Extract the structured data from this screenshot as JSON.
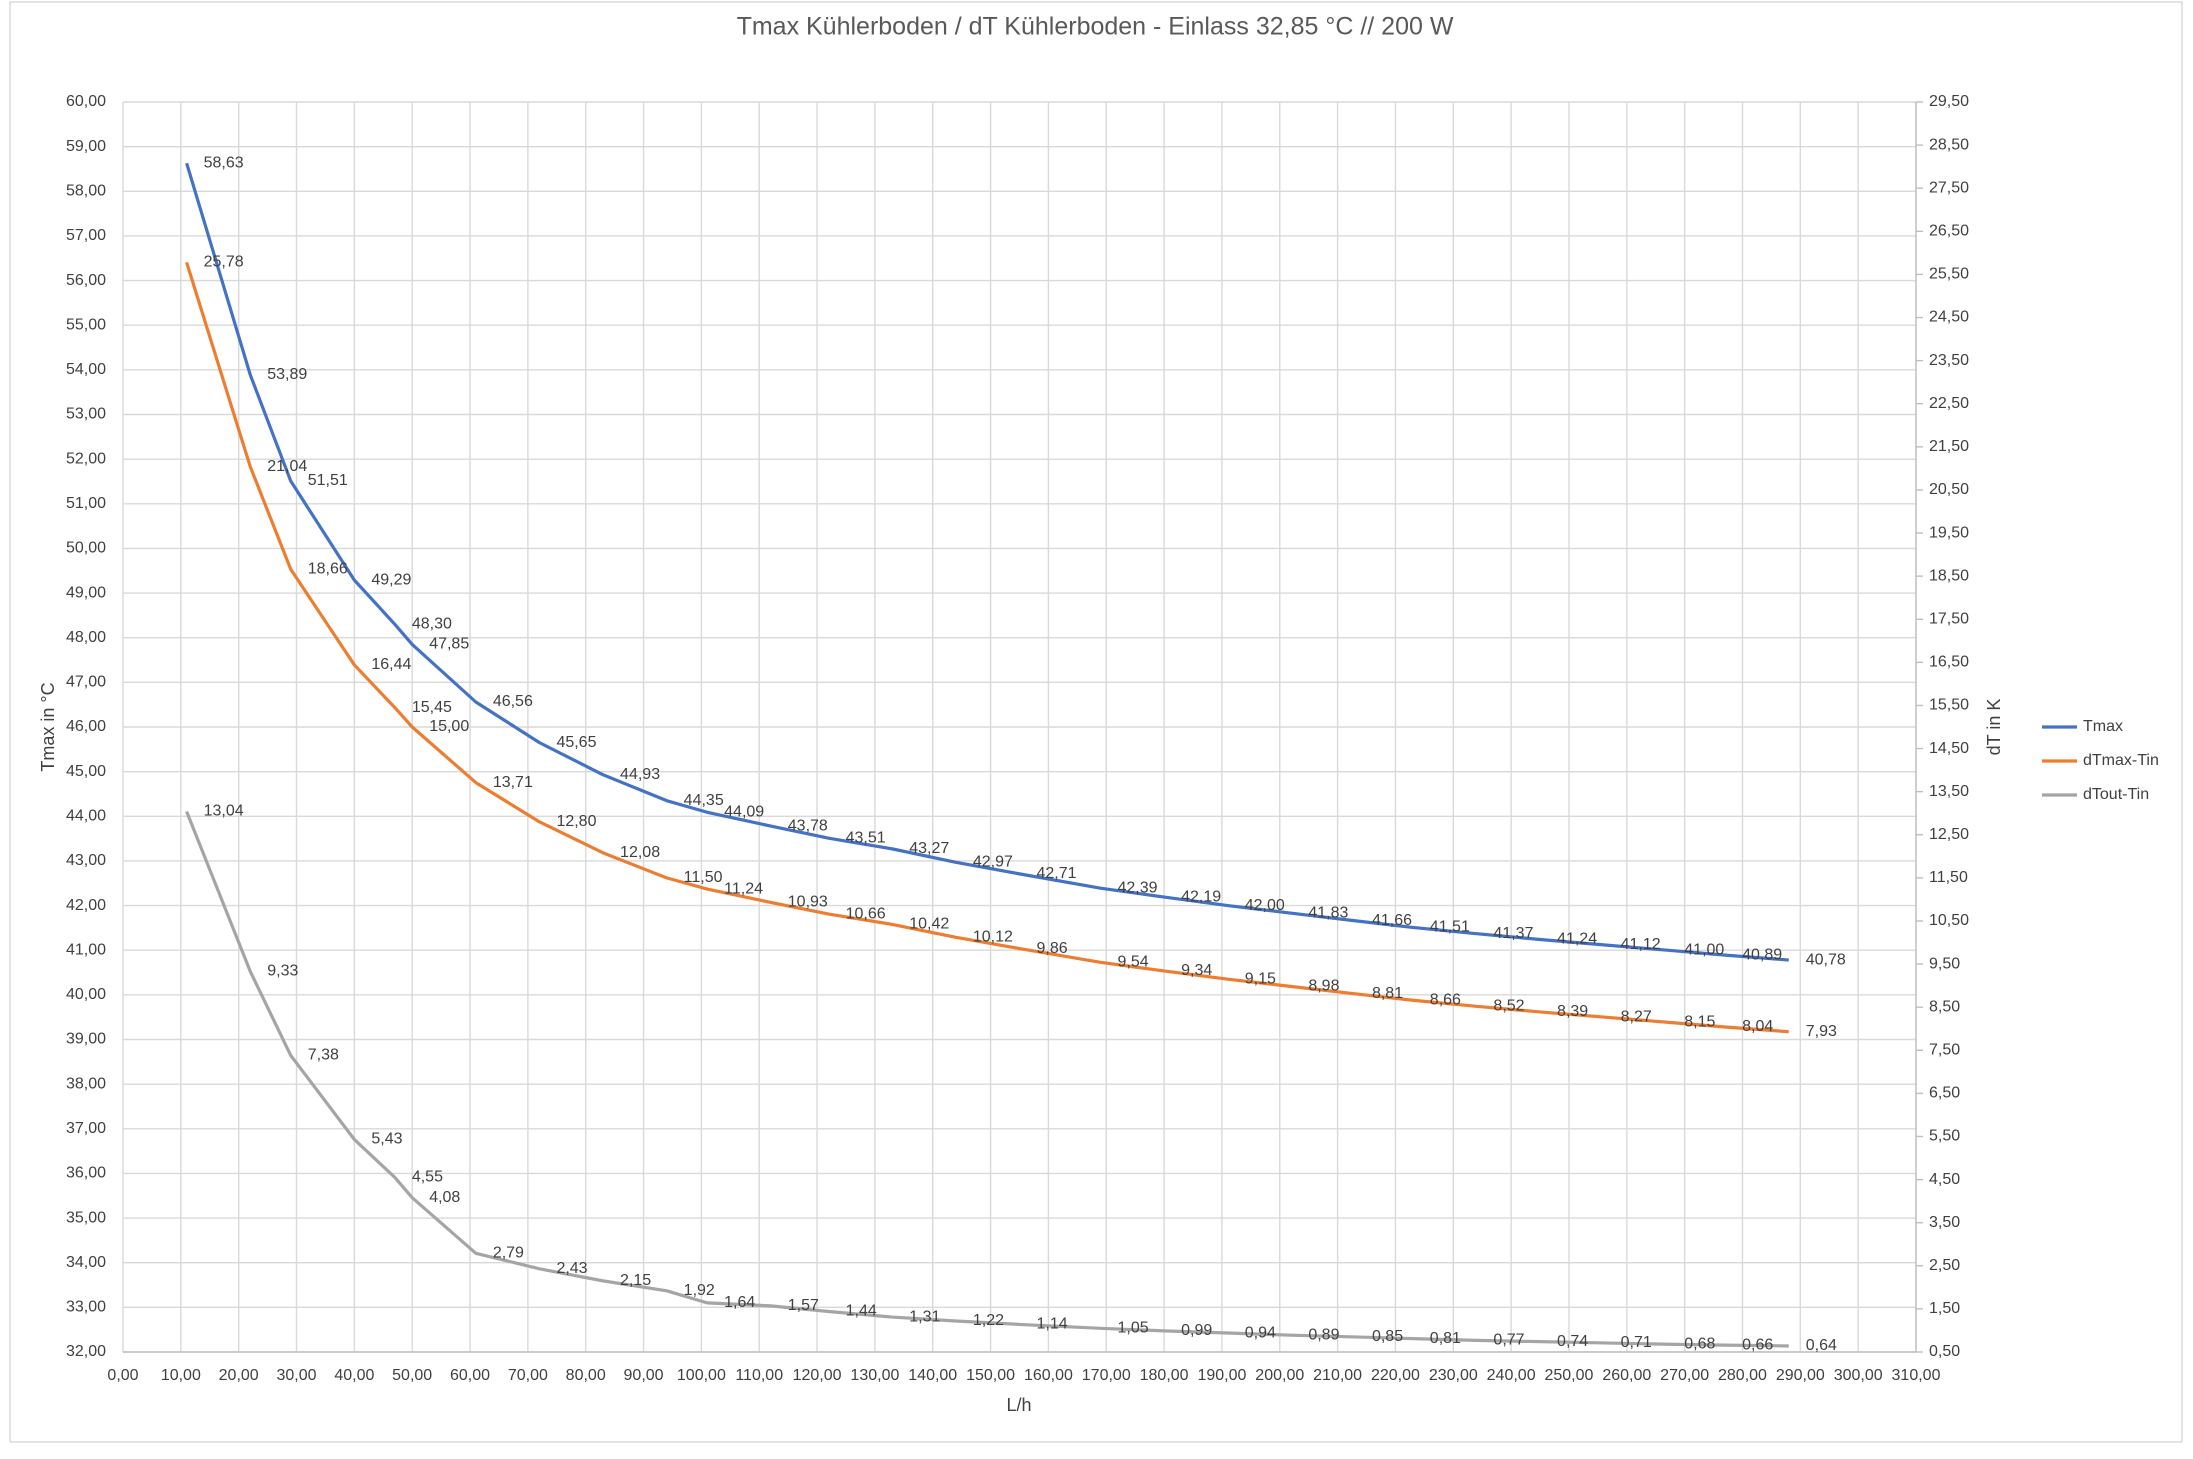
{
  "chart_data": {
    "type": "line",
    "title": "Tmax Kühlerboden / dT Kühlerboden - Einlass 32,85 °C // 200 W",
    "x_label": "L/h",
    "y_label": "Tmax in °C",
    "y2_label": "dT in K",
    "x": [
      11,
      22,
      29,
      40,
      47,
      50,
      61,
      72,
      83,
      94,
      101,
      112,
      122,
      133,
      144,
      155,
      169,
      180,
      191,
      202,
      213,
      223,
      234,
      245,
      256,
      267,
      277,
      288
    ],
    "series": [
      {
        "name": "Tmax",
        "color": "#4472c4",
        "values": [
          58.63,
          53.89,
          51.51,
          49.29,
          48.3,
          47.85,
          46.56,
          45.65,
          44.93,
          44.35,
          44.09,
          43.78,
          43.51,
          43.27,
          42.97,
          42.71,
          42.39,
          42.19,
          42.0,
          41.83,
          41.66,
          41.51,
          41.37,
          41.24,
          41.12,
          41.0,
          40.89,
          40.78
        ],
        "value_labels": [
          "58,63",
          "53,89",
          "51,51",
          "49,29",
          "48,30",
          "47,85",
          "46,56",
          "45,65",
          "44,93",
          "44,35",
          "44,09",
          "43,78",
          "43,51",
          "43,27",
          "42,97",
          "42,71",
          "42,39",
          "42,19",
          "42,00",
          "41,83",
          "41,66",
          "41,51",
          "41,37",
          "41,24",
          "41,12",
          "41,00",
          "40,89",
          "40,78"
        ]
      },
      {
        "name": "dTmax-Tin",
        "color": "#ed7d31",
        "axis": "y2",
        "values": [
          25.78,
          21.04,
          18.66,
          16.44,
          15.45,
          15.0,
          13.71,
          12.8,
          12.08,
          11.5,
          11.24,
          10.93,
          10.66,
          10.42,
          10.12,
          9.86,
          9.54,
          9.34,
          9.15,
          8.98,
          8.81,
          8.66,
          8.52,
          8.39,
          8.27,
          8.15,
          8.04,
          7.93
        ],
        "value_labels": [
          "25,78",
          "21,04",
          "18,66",
          "16,44",
          "15,45",
          "15,00",
          "13,71",
          "12,80",
          "12,08",
          "11,50",
          "11,24",
          "10,93",
          "10,66",
          "10,42",
          "10,12",
          "9,86",
          "9,54",
          "9,34",
          "9,15",
          "8,98",
          "8,81",
          "8,66",
          "8,52",
          "8,39",
          "8,27",
          "8,15",
          "8,04",
          "7,93"
        ]
      },
      {
        "name": "dTout-Tin",
        "color": "#a5a5a5",
        "axis": "y2",
        "values": [
          13.04,
          9.33,
          7.38,
          5.43,
          4.55,
          4.08,
          2.79,
          2.43,
          2.15,
          1.92,
          1.64,
          1.57,
          1.44,
          1.31,
          1.22,
          1.14,
          1.05,
          0.99,
          0.94,
          0.89,
          0.85,
          0.81,
          0.77,
          0.74,
          0.71,
          0.68,
          0.66,
          0.64
        ],
        "value_labels": [
          "13,04",
          "9,33",
          "7,38",
          "5,43",
          "4,55",
          "4,08",
          "2,79",
          "2,43",
          "2,15",
          "1,92",
          "1,64",
          "1,57",
          "1,44",
          "1,31",
          "1,22",
          "1,14",
          "1,05",
          "0,99",
          "0,94",
          "0,89",
          "0,85",
          "0,81",
          "0,77",
          "0,74",
          "0,71",
          "0,68",
          "0,66",
          "0,64"
        ]
      }
    ],
    "xlim": [
      0,
      310
    ],
    "xticks": [
      {
        "value": 0,
        "label": "0,00"
      },
      {
        "value": 10,
        "label": "10,00"
      },
      {
        "value": 20,
        "label": "20,00"
      },
      {
        "value": 30,
        "label": "30,00"
      },
      {
        "value": 40,
        "label": "40,00"
      },
      {
        "value": 50,
        "label": "50,00"
      },
      {
        "value": 60,
        "label": "60,00"
      },
      {
        "value": 70,
        "label": "70,00"
      },
      {
        "value": 80,
        "label": "80,00"
      },
      {
        "value": 90,
        "label": "90,00"
      },
      {
        "value": 100,
        "label": "100,00"
      },
      {
        "value": 110,
        "label": "110,00"
      },
      {
        "value": 120,
        "label": "120,00"
      },
      {
        "value": 130,
        "label": "130,00"
      },
      {
        "value": 140,
        "label": "140,00"
      },
      {
        "value": 150,
        "label": "150,00"
      },
      {
        "value": 160,
        "label": "160,00"
      },
      {
        "value": 170,
        "label": "170,00"
      },
      {
        "value": 180,
        "label": "180,00"
      },
      {
        "value": 190,
        "label": "190,00"
      },
      {
        "value": 200,
        "label": "200,00"
      },
      {
        "value": 210,
        "label": "210,00"
      },
      {
        "value": 220,
        "label": "220,00"
      },
      {
        "value": 230,
        "label": "230,00"
      },
      {
        "value": 240,
        "label": "240,00"
      },
      {
        "value": 250,
        "label": "250,00"
      },
      {
        "value": 260,
        "label": "260,00"
      },
      {
        "value": 270,
        "label": "270,00"
      },
      {
        "value": 280,
        "label": "280,00"
      },
      {
        "value": 290,
        "label": "290,00"
      },
      {
        "value": 300,
        "label": "300,00"
      },
      {
        "value": 310,
        "label": "310,00"
      }
    ],
    "ylim": [
      32,
      60
    ],
    "yticks": [
      {
        "value": 32,
        "label": "32,00"
      },
      {
        "value": 33,
        "label": "33,00"
      },
      {
        "value": 34,
        "label": "34,00"
      },
      {
        "value": 35,
        "label": "35,00"
      },
      {
        "value": 36,
        "label": "36,00"
      },
      {
        "value": 37,
        "label": "37,00"
      },
      {
        "value": 38,
        "label": "38,00"
      },
      {
        "value": 39,
        "label": "39,00"
      },
      {
        "value": 40,
        "label": "40,00"
      },
      {
        "value": 41,
        "label": "41,00"
      },
      {
        "value": 42,
        "label": "42,00"
      },
      {
        "value": 43,
        "label": "43,00"
      },
      {
        "value": 44,
        "label": "44,00"
      },
      {
        "value": 45,
        "label": "45,00"
      },
      {
        "value": 46,
        "label": "46,00"
      },
      {
        "value": 47,
        "label": "47,00"
      },
      {
        "value": 48,
        "label": "48,00"
      },
      {
        "value": 49,
        "label": "49,00"
      },
      {
        "value": 50,
        "label": "50,00"
      },
      {
        "value": 51,
        "label": "51,00"
      },
      {
        "value": 52,
        "label": "52,00"
      },
      {
        "value": 53,
        "label": "53,00"
      },
      {
        "value": 54,
        "label": "54,00"
      },
      {
        "value": 55,
        "label": "55,00"
      },
      {
        "value": 56,
        "label": "56,00"
      },
      {
        "value": 57,
        "label": "57,00"
      },
      {
        "value": 58,
        "label": "58,00"
      },
      {
        "value": 59,
        "label": "59,00"
      },
      {
        "value": 60,
        "label": "60,00"
      }
    ],
    "y2lim": [
      0.5,
      29.5
    ],
    "y2ticks": [
      {
        "value": 0.5,
        "label": "0,50"
      },
      {
        "value": 1.5,
        "label": "1,50"
      },
      {
        "value": 2.5,
        "label": "2,50"
      },
      {
        "value": 3.5,
        "label": "3,50"
      },
      {
        "value": 4.5,
        "label": "4,50"
      },
      {
        "value": 5.5,
        "label": "5,50"
      },
      {
        "value": 6.5,
        "label": "6,50"
      },
      {
        "value": 7.5,
        "label": "7,50"
      },
      {
        "value": 8.5,
        "label": "8,50"
      },
      {
        "value": 9.5,
        "label": "9,50"
      },
      {
        "value": 10.5,
        "label": "10,50"
      },
      {
        "value": 11.5,
        "label": "11,50"
      },
      {
        "value": 12.5,
        "label": "12,50"
      },
      {
        "value": 13.5,
        "label": "13,50"
      },
      {
        "value": 14.5,
        "label": "14,50"
      },
      {
        "value": 15.5,
        "label": "15,50"
      },
      {
        "value": 16.5,
        "label": "16,50"
      },
      {
        "value": 17.5,
        "label": "17,50"
      },
      {
        "value": 18.5,
        "label": "18,50"
      },
      {
        "value": 19.5,
        "label": "19,50"
      },
      {
        "value": 20.5,
        "label": "20,50"
      },
      {
        "value": 21.5,
        "label": "21,50"
      },
      {
        "value": 22.5,
        "label": "22,50"
      },
      {
        "value": 23.5,
        "label": "23,50"
      },
      {
        "value": 24.5,
        "label": "24,50"
      },
      {
        "value": 25.5,
        "label": "25,50"
      },
      {
        "value": 26.5,
        "label": "26,50"
      },
      {
        "value": 27.5,
        "label": "27,50"
      },
      {
        "value": 28.5,
        "label": "28,50"
      },
      {
        "value": 29.5,
        "label": "29,50"
      }
    ],
    "grid": true,
    "legend": "right"
  }
}
